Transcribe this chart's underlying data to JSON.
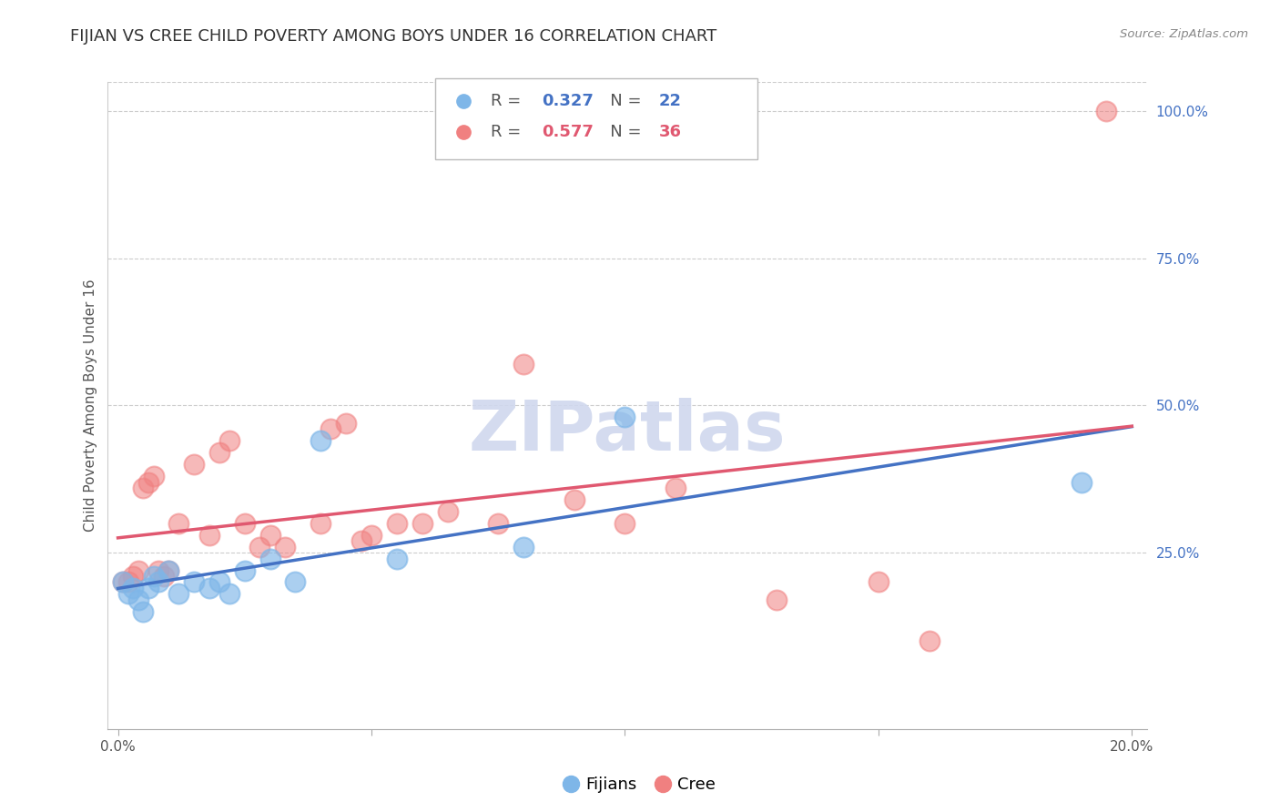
{
  "title": "FIJIAN VS CREE CHILD POVERTY AMONG BOYS UNDER 16 CORRELATION CHART",
  "source": "Source: ZipAtlas.com",
  "ylabel": "Child Poverty Among Boys Under 16",
  "x_min": 0.0,
  "x_max": 0.2,
  "y_min": -0.05,
  "y_max": 1.05,
  "x_ticks": [
    0.0,
    0.05,
    0.1,
    0.15,
    0.2
  ],
  "x_tick_labels": [
    "0.0%",
    "",
    "",
    "",
    "20.0%"
  ],
  "y_ticks_right": [
    0.25,
    0.5,
    0.75,
    1.0
  ],
  "y_tick_labels_right": [
    "25.0%",
    "50.0%",
    "75.0%",
    "100.0%"
  ],
  "fijians_x": [
    0.001,
    0.002,
    0.003,
    0.004,
    0.005,
    0.006,
    0.007,
    0.008,
    0.01,
    0.012,
    0.015,
    0.018,
    0.02,
    0.022,
    0.025,
    0.03,
    0.035,
    0.04,
    0.055,
    0.08,
    0.1,
    0.19
  ],
  "fijians_y": [
    0.2,
    0.18,
    0.19,
    0.17,
    0.15,
    0.19,
    0.21,
    0.2,
    0.22,
    0.18,
    0.2,
    0.19,
    0.2,
    0.18,
    0.22,
    0.24,
    0.2,
    0.44,
    0.24,
    0.26,
    0.48,
    0.37
  ],
  "cree_x": [
    0.001,
    0.002,
    0.003,
    0.004,
    0.005,
    0.006,
    0.007,
    0.008,
    0.009,
    0.01,
    0.012,
    0.015,
    0.018,
    0.02,
    0.022,
    0.025,
    0.028,
    0.03,
    0.033,
    0.04,
    0.042,
    0.045,
    0.048,
    0.05,
    0.055,
    0.06,
    0.065,
    0.075,
    0.08,
    0.09,
    0.1,
    0.11,
    0.13,
    0.15,
    0.16,
    0.195
  ],
  "cree_y": [
    0.2,
    0.2,
    0.21,
    0.22,
    0.36,
    0.37,
    0.38,
    0.22,
    0.21,
    0.22,
    0.3,
    0.4,
    0.28,
    0.42,
    0.44,
    0.3,
    0.26,
    0.28,
    0.26,
    0.3,
    0.46,
    0.47,
    0.27,
    0.28,
    0.3,
    0.3,
    0.32,
    0.3,
    0.57,
    0.34,
    0.3,
    0.36,
    0.17,
    0.2,
    0.1,
    1.0
  ],
  "fijians_R": 0.327,
  "fijians_N": 22,
  "cree_R": 0.577,
  "cree_N": 36,
  "fijians_color": "#7eb6e8",
  "cree_color": "#f08080",
  "fijians_line_color": "#4472c4",
  "cree_line_color": "#e05870",
  "background_color": "#ffffff",
  "grid_color": "#cccccc",
  "watermark_color": "#d0d8ee",
  "title_fontsize": 13,
  "axis_label_fontsize": 11,
  "tick_fontsize": 11,
  "legend_fontsize": 13
}
